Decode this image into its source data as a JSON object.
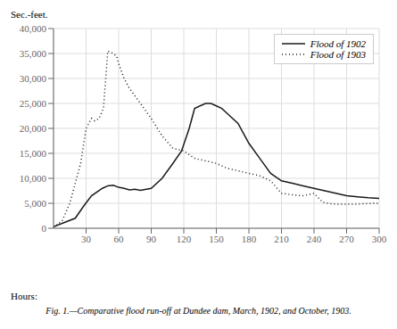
{
  "chart_data": {
    "type": "line",
    "title": "Fig. 1.—Comparative flood run-off at Dundee dam, March, 1902, and October, 1903.",
    "x_label": "Hours:",
    "y_label": "Sec.-feet.",
    "xlim": [
      0,
      300
    ],
    "ylim": [
      0,
      40000
    ],
    "xticks": [
      30,
      60,
      90,
      120,
      150,
      180,
      210,
      240,
      270,
      300
    ],
    "yticks": [
      0,
      {
        "value": 5000,
        "label": "5,000"
      },
      {
        "value": 10000,
        "label": "10,000"
      },
      {
        "value": 15000,
        "label": "15,000"
      },
      {
        "value": 20000,
        "label": "20,000"
      },
      {
        "value": 25000,
        "label": "25,000"
      },
      {
        "value": 30000,
        "label": "30,000"
      },
      {
        "value": 35000,
        "label": "35,000"
      },
      {
        "value": 40000,
        "label": "40,000"
      }
    ],
    "grid": true,
    "legend": "upper right",
    "series": [
      {
        "name": "Flood of 1902",
        "color": "#1a1a1a",
        "line_style": "solid",
        "x": [
          0,
          20,
          28,
          35,
          45,
          50,
          55,
          60,
          65,
          70,
          75,
          80,
          90,
          100,
          110,
          118,
          125,
          130,
          140,
          145,
          150,
          155,
          160,
          170,
          175,
          180,
          190,
          200,
          210,
          220,
          230,
          240,
          250,
          260,
          270,
          280,
          290,
          300
        ],
        "values": [
          300,
          2000,
          4500,
          6500,
          8000,
          8500,
          8600,
          8200,
          8000,
          7700,
          7800,
          7600,
          8000,
          10000,
          13000,
          15500,
          20000,
          24000,
          25000,
          25000,
          24500,
          24000,
          23000,
          21000,
          19000,
          17000,
          14000,
          11000,
          9500,
          9000,
          8500,
          8000,
          7500,
          7000,
          6500,
          6300,
          6100,
          6000
        ]
      },
      {
        "name": "Flood of 1903",
        "color": "#1a1a1a",
        "line_style": "dotted",
        "x": [
          0,
          8,
          15,
          20,
          25,
          30,
          35,
          38,
          42,
          46,
          50,
          52,
          55,
          58,
          60,
          65,
          70,
          75,
          80,
          90,
          100,
          110,
          120,
          130,
          140,
          150,
          160,
          170,
          180,
          190,
          200,
          210,
          220,
          230,
          240,
          248,
          255,
          265,
          275,
          285,
          295,
          300
        ],
        "values": [
          200,
          1500,
          5000,
          9000,
          13000,
          20000,
          22000,
          21500,
          22000,
          24000,
          35500,
          35300,
          35000,
          34500,
          33000,
          30000,
          28000,
          26500,
          25000,
          22000,
          18500,
          16000,
          15500,
          14000,
          13500,
          13000,
          12000,
          11500,
          11000,
          10500,
          9500,
          7000,
          6700,
          6500,
          7000,
          5200,
          4900,
          4800,
          4800,
          4900,
          5000,
          5000
        ]
      }
    ]
  }
}
